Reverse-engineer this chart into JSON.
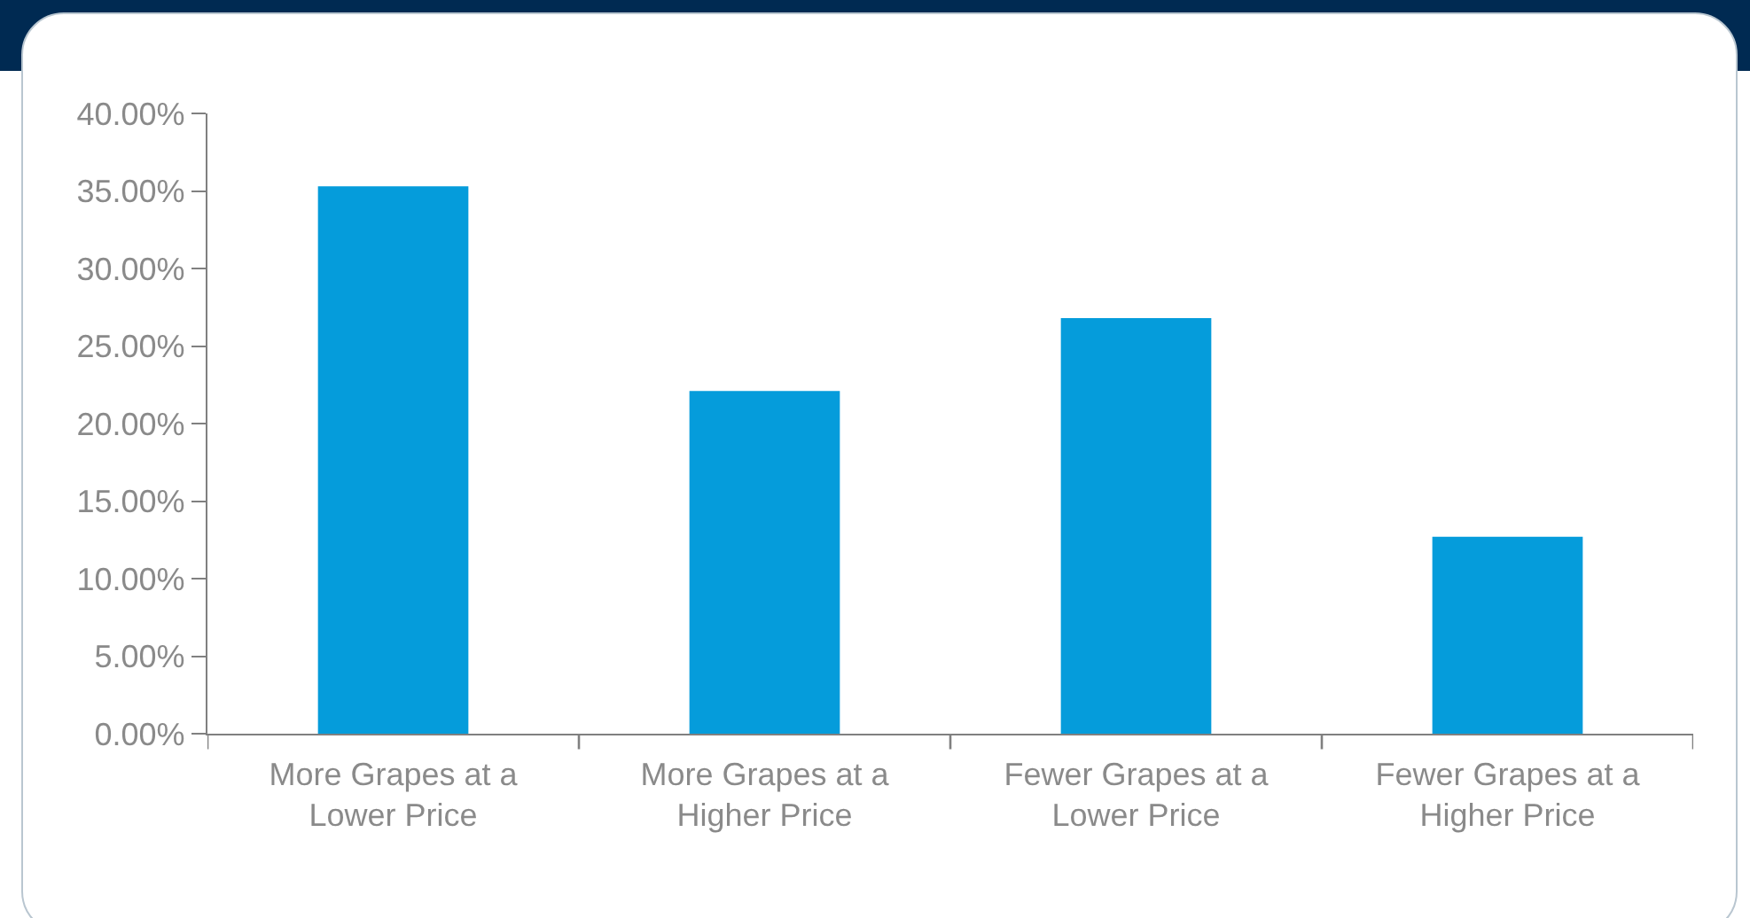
{
  "chart_data": {
    "type": "bar",
    "categories": [
      "More Grapes at a Lower Price",
      "More Grapes at a Higher Price",
      "Fewer Grapes at a Lower Price",
      "Fewer Grapes at a Higher Price"
    ],
    "values": [
      35.3,
      22.1,
      26.8,
      12.7
    ],
    "color": "#059cdb",
    "ylim": [
      0,
      40
    ],
    "yticks": [
      {
        "value": 0,
        "label": "0.00%"
      },
      {
        "value": 5,
        "label": "5.00%"
      },
      {
        "value": 10,
        "label": "10.00%"
      },
      {
        "value": 15,
        "label": "15.00%"
      },
      {
        "value": 20,
        "label": "20.00%"
      },
      {
        "value": 25,
        "label": "25.00%"
      },
      {
        "value": 30,
        "label": "30.00%"
      },
      {
        "value": 35,
        "label": "35.00%"
      },
      {
        "value": 40,
        "label": "40.00%"
      }
    ]
  }
}
